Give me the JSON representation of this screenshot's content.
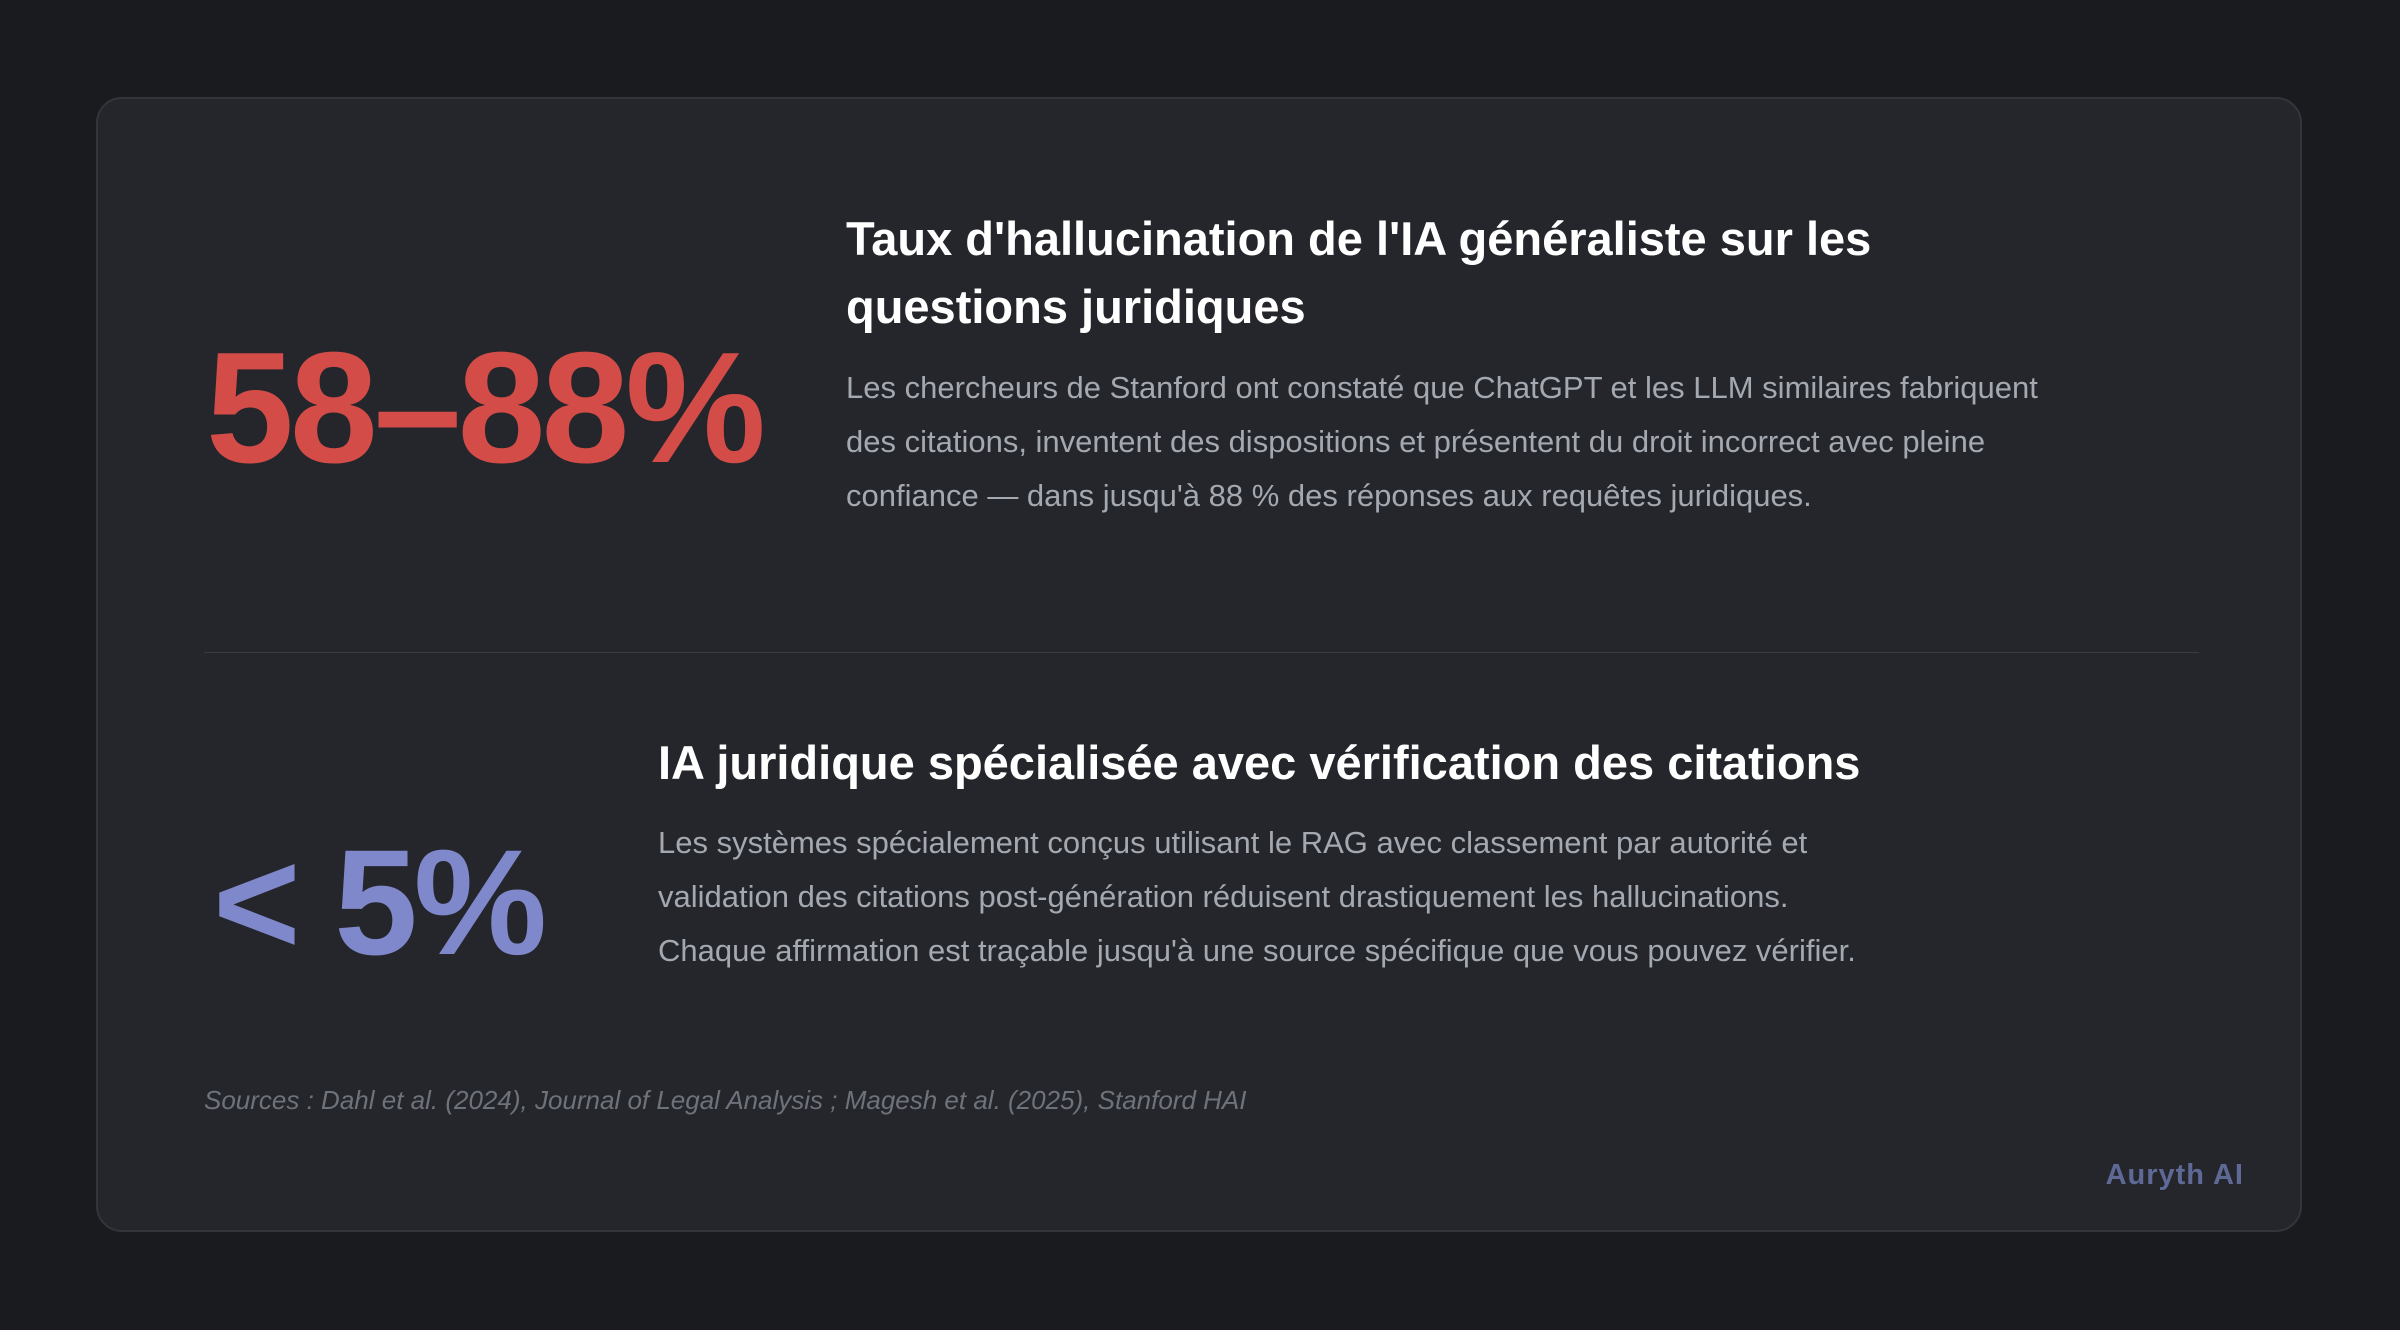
{
  "stats": [
    {
      "value": "58–88%",
      "title": "Taux d'hallucination de l'IA généraliste sur les questions juridiques",
      "description": "Les chercheurs de Stanford ont constaté que ChatGPT et les LLM similaires fabriquent des citations, inventent des dispositions et présentent du droit incorrect avec pleine confiance — dans jusqu'à 88 % des réponses aux requêtes juridiques.",
      "color": "#d34c48"
    },
    {
      "value": "< 5%",
      "title": "IA juridique spécialisée avec vérification des citations",
      "description": "Les systèmes spécialement conçus utilisant le RAG avec classement par autorité et validation des citations post-génération réduisent drastiquement les hallucinations. Chaque affirmation est traçable jusqu'à une source spécifique que vous pouvez vérifier.",
      "color": "#8088cc"
    }
  ],
  "sources": "Sources : Dahl et al. (2024), Journal of Legal Analysis ; Magesh et al. (2025), Stanford HAI",
  "brand": "Auryth AI"
}
